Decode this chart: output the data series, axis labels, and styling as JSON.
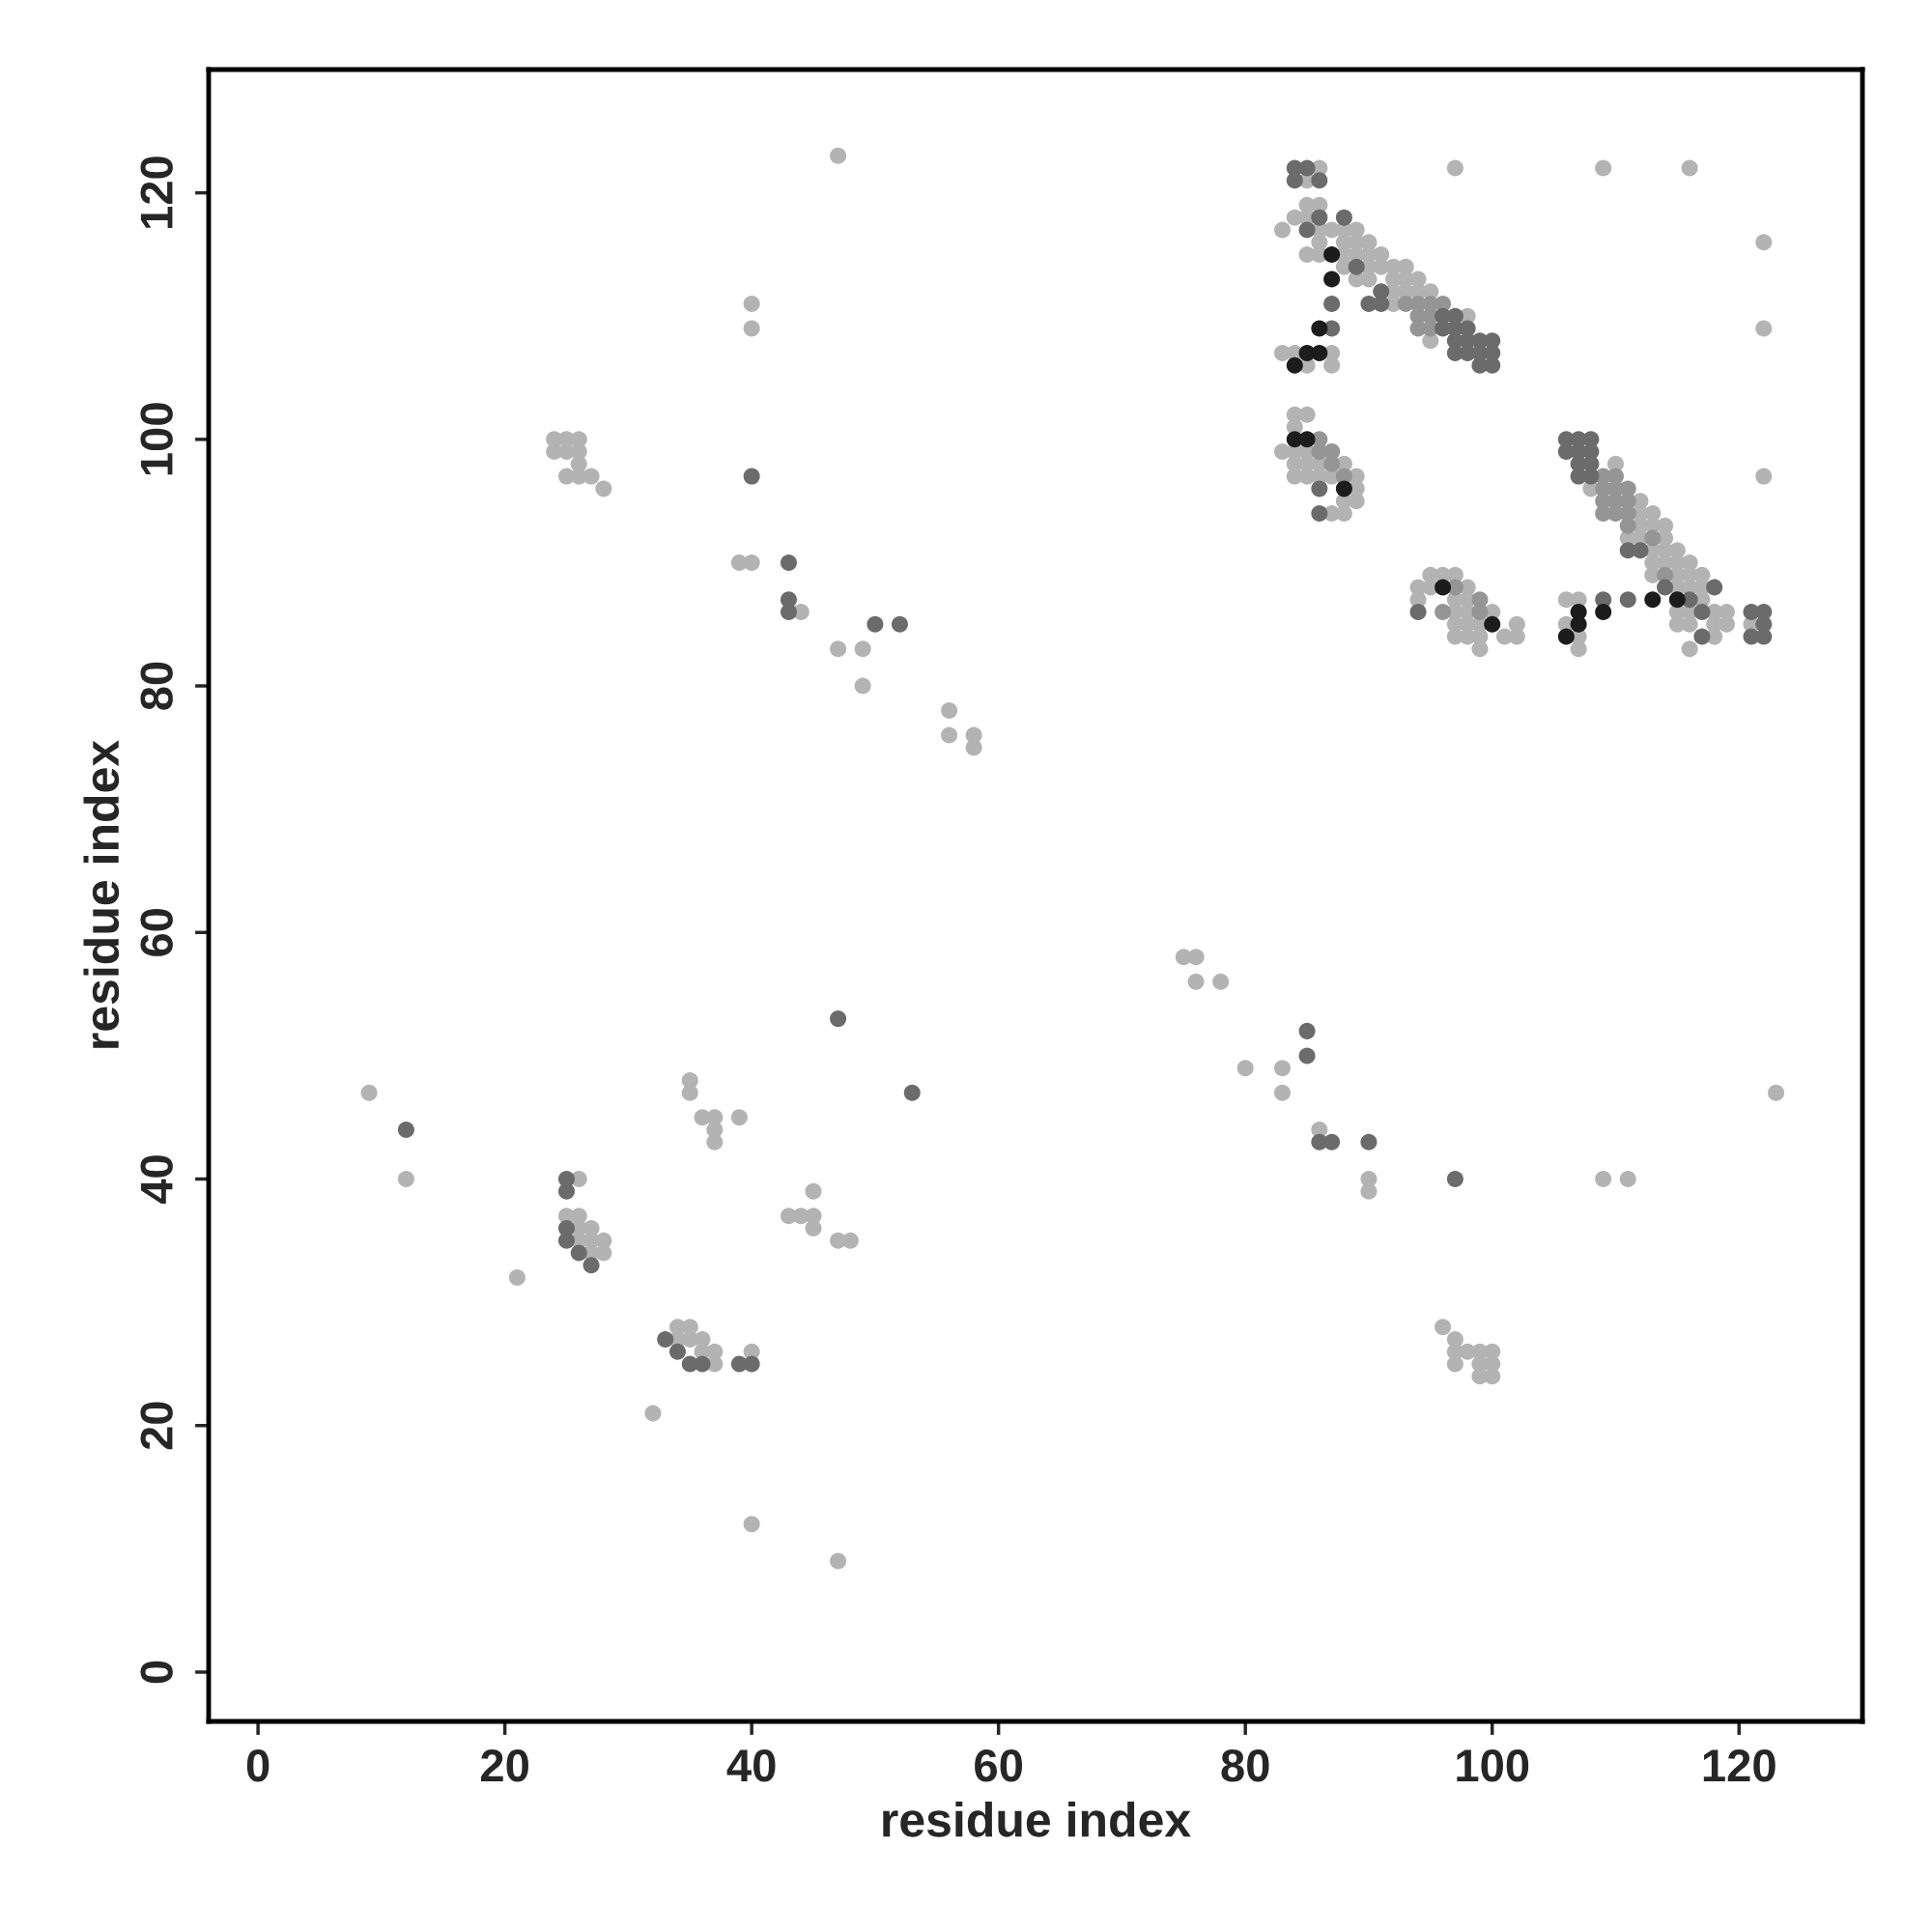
{
  "chart_data": {
    "type": "scatter",
    "xlabel": "residue index",
    "ylabel": "residue index",
    "xlim": [
      -4,
      130
    ],
    "ylim": [
      -4,
      130
    ],
    "xticks": [
      0,
      20,
      40,
      60,
      80,
      100,
      120
    ],
    "yticks": [
      0,
      20,
      40,
      60,
      80,
      100,
      120
    ],
    "marker": "circle",
    "series": [
      {
        "color": "#b3b3b3",
        "x": [
          47,
          97,
          109,
          116,
          122,
          122,
          122,
          40,
          40,
          24,
          25,
          26,
          24,
          25,
          26,
          26,
          25,
          26,
          27,
          28,
          39,
          40,
          44,
          47,
          49,
          49,
          56,
          56,
          58,
          58,
          75,
          76,
          76,
          78,
          80,
          83,
          83,
          86,
          90,
          90,
          109,
          111,
          123,
          96,
          97,
          97,
          98,
          99,
          100,
          97,
          99,
          100,
          99,
          100,
          9,
          12,
          21,
          32,
          40,
          47,
          35,
          35,
          36,
          37,
          37,
          37,
          39,
          43,
          44,
          45,
          45,
          45,
          47,
          48,
          26,
          25,
          26,
          26,
          27,
          26,
          27,
          28,
          27,
          28,
          34,
          35,
          34,
          35,
          36,
          36,
          37,
          37,
          40,
          86,
          85,
          85,
          86,
          84,
          85,
          83,
          86,
          87,
          88,
          89,
          86,
          88,
          89,
          90,
          85,
          86,
          88,
          89,
          90,
          91,
          88,
          90,
          91,
          92,
          93,
          89,
          90,
          92,
          93,
          94,
          92,
          93,
          94,
          95,
          92,
          98,
          95,
          83,
          84,
          87,
          85,
          87,
          84,
          85,
          84,
          83,
          84,
          85,
          87,
          84,
          85,
          86,
          88,
          84,
          85,
          86,
          87,
          89,
          89,
          88,
          89,
          87,
          88,
          95,
          96,
          97,
          94,
          95,
          98,
          94,
          97,
          98,
          97,
          98,
          100,
          97,
          98,
          99,
          102,
          97,
          98,
          99,
          101,
          102,
          99,
          110,
          108,
          112,
          112,
          113,
          112,
          113,
          114,
          111,
          112,
          114,
          113,
          114,
          115,
          113,
          114,
          115,
          116,
          113,
          115,
          116,
          117,
          115,
          116,
          117,
          106,
          107,
          117,
          115,
          116,
          118,
          119,
          106,
          115,
          116,
          118,
          119,
          121,
          107,
          118,
          107,
          116
        ],
        "values": [
          123,
          122,
          122,
          122,
          116,
          109,
          97,
          111,
          109,
          100,
          100,
          100,
          99,
          99,
          99,
          98,
          97,
          97,
          97,
          96,
          90,
          90,
          86,
          83,
          83,
          80,
          78,
          76,
          76,
          75,
          58,
          58,
          56,
          56,
          49,
          49,
          47,
          44,
          40,
          39,
          40,
          40,
          47,
          28,
          27,
          26,
          26,
          26,
          26,
          25,
          25,
          25,
          24,
          24,
          47,
          40,
          32,
          21,
          12,
          9,
          48,
          47,
          45,
          45,
          44,
          43,
          45,
          37,
          37,
          37,
          39,
          36,
          35,
          35,
          40,
          37,
          37,
          36,
          36,
          35,
          35,
          35,
          34,
          34,
          28,
          28,
          27,
          27,
          27,
          26,
          26,
          25,
          26,
          122,
          121,
          119,
          119,
          118,
          118,
          117,
          117,
          117,
          117,
          117,
          116,
          116,
          116,
          116,
          115,
          115,
          115,
          115,
          115,
          115,
          114,
          114,
          114,
          114,
          114,
          113,
          113,
          113,
          113,
          113,
          112,
          112,
          112,
          112,
          111,
          110,
          108,
          107,
          107,
          107,
          106,
          106,
          102,
          102,
          101,
          99,
          99,
          99,
          99,
          98,
          98,
          98,
          98,
          97,
          97,
          97,
          97,
          97,
          96,
          95,
          95,
          94,
          94,
          89,
          89,
          89,
          88,
          88,
          88,
          87,
          87,
          87,
          86,
          86,
          86,
          85,
          85,
          85,
          85,
          84,
          84,
          84,
          84,
          84,
          83,
          98,
          96,
          95,
          94,
          94,
          93,
          93,
          93,
          92,
          92,
          92,
          91,
          91,
          91,
          90,
          90,
          90,
          90,
          89,
          89,
          89,
          89,
          88,
          88,
          88,
          87,
          87,
          87,
          86,
          86,
          86,
          86,
          85,
          85,
          85,
          85,
          85,
          85,
          84,
          84,
          83,
          83
        ]
      },
      {
        "color": "#959595",
        "x": [
          86,
          86,
          87,
          87,
          88,
          93,
          94,
          95,
          96,
          94,
          95,
          94,
          95,
          109,
          110,
          109,
          110,
          111,
          109,
          110,
          111,
          109,
          110,
          111,
          111,
          113,
          114,
          97,
          99,
          96,
          99
        ],
        "values": [
          100,
          99,
          99,
          98,
          97,
          111,
          111,
          111,
          111,
          110,
          110,
          109,
          109,
          97,
          97,
          96,
          96,
          96,
          95,
          95,
          95,
          94,
          94,
          94,
          93,
          92,
          89,
          88,
          87,
          86,
          86
        ]
      },
      {
        "color": "#6b6b6b",
        "x": [
          40,
          43,
          43,
          43,
          50,
          52,
          85,
          85,
          86,
          87,
          90,
          97,
          12,
          47,
          53,
          25,
          25,
          25,
          25,
          26,
          27,
          33,
          34,
          35,
          36,
          39,
          40,
          84,
          85,
          84,
          86,
          86,
          88,
          85,
          89,
          91,
          87,
          90,
          91,
          96,
          97,
          87,
          96,
          97,
          98,
          97,
          98,
          99,
          100,
          97,
          98,
          99,
          100,
          99,
          100,
          86,
          86,
          94,
          106,
          107,
          108,
          106,
          107,
          108,
          107,
          108,
          107,
          108,
          111,
          112,
          114,
          118,
          109,
          111,
          116,
          117,
          121,
          122,
          122,
          117,
          121,
          122
        ],
        "values": [
          97,
          90,
          87,
          86,
          85,
          85,
          52,
          50,
          43,
          43,
          43,
          40,
          44,
          53,
          47,
          40,
          39,
          36,
          35,
          34,
          33,
          27,
          26,
          25,
          25,
          25,
          25,
          122,
          122,
          121,
          121,
          118,
          118,
          117,
          114,
          112,
          111,
          111,
          111,
          110,
          110,
          109,
          109,
          109,
          109,
          108,
          108,
          108,
          108,
          107,
          107,
          107,
          107,
          106,
          106,
          96,
          94,
          86,
          100,
          100,
          100,
          99,
          99,
          99,
          98,
          98,
          97,
          97,
          91,
          91,
          88,
          88,
          87,
          87,
          87,
          86,
          86,
          86,
          85,
          84,
          84,
          84
        ]
      },
      {
        "color": "#1c1c1c",
        "x": [
          87,
          87,
          86,
          85,
          86,
          84,
          84,
          85,
          88,
          96,
          100,
          107,
          109,
          113,
          115,
          107,
          106
        ],
        "values": [
          115,
          113,
          109,
          107,
          107,
          106,
          100,
          100,
          96,
          88,
          85,
          86,
          86,
          87,
          87,
          85,
          84
        ]
      }
    ]
  }
}
